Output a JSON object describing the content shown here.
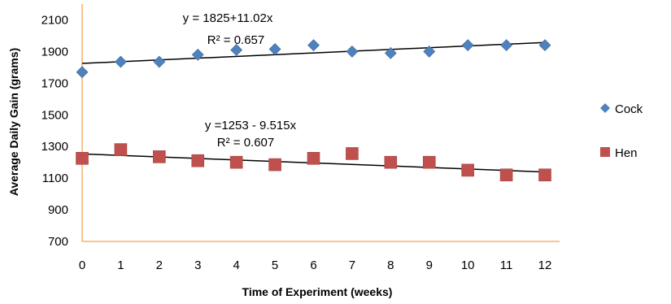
{
  "chart_data": {
    "type": "scatter",
    "title": "",
    "xlabel": "Time of Experiment (weeks)",
    "ylabel": "Average Daily Gain  (grams)",
    "xlim": [
      0,
      12
    ],
    "ylim": [
      700,
      2200
    ],
    "xticks": [
      0,
      1,
      2,
      3,
      4,
      5,
      6,
      7,
      8,
      9,
      10,
      11,
      12
    ],
    "yticks": [
      700,
      900,
      1100,
      1300,
      1500,
      1700,
      1900,
      2100
    ],
    "grid": false,
    "legend_position": "right",
    "axis_color": "#F5A54A",
    "series": [
      {
        "name": "Cock",
        "marker": "diamond",
        "color": "#4F81BD",
        "x": [
          0,
          1,
          2,
          3,
          4,
          5,
          6,
          7,
          8,
          9,
          10,
          11,
          12
        ],
        "y": [
          1770,
          1835,
          1835,
          1880,
          1910,
          1915,
          1940,
          1900,
          1890,
          1900,
          1940,
          1940,
          1940
        ],
        "trendline": {
          "intercept": 1825,
          "slope": 11.02,
          "equation": "y = 1825+11.02x",
          "r2": "R² = 0.657"
        }
      },
      {
        "name": "Hen",
        "marker": "square",
        "color": "#C0504D",
        "x": [
          0,
          1,
          2,
          3,
          4,
          5,
          6,
          7,
          8,
          9,
          10,
          11,
          12
        ],
        "y": [
          1225,
          1280,
          1235,
          1210,
          1200,
          1185,
          1225,
          1255,
          1200,
          1200,
          1150,
          1120,
          1120
        ],
        "trendline": {
          "intercept": 1253,
          "slope": -9.515,
          "equation": "y =1253 - 9.515x",
          "r2": "R² = 0.607"
        }
      }
    ]
  }
}
